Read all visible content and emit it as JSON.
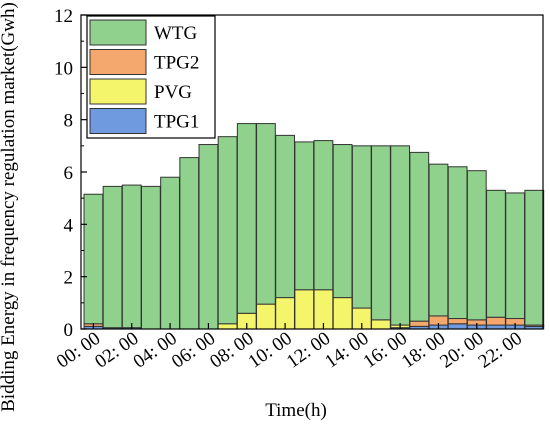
{
  "chart_data": {
    "type": "bar",
    "stacked": true,
    "xlabel": "Time(h)",
    "ylabel": "Bidding Energy in frequency regulation market(Gwh)",
    "ylim": [
      0,
      12
    ],
    "yticks": [
      0,
      2,
      4,
      6,
      8,
      10,
      12
    ],
    "xtick_labels": [
      "00: 00",
      "02: 00",
      "04: 00",
      "06: 00",
      "08: 00",
      "10: 00",
      "12: 00",
      "14: 00",
      "16: 00",
      "18: 00",
      "20: 00",
      "22: 00"
    ],
    "categories": [
      0,
      1,
      2,
      3,
      4,
      5,
      6,
      7,
      8,
      9,
      10,
      11,
      12,
      13,
      14,
      15,
      16,
      17,
      18,
      19,
      20,
      21,
      22,
      23
    ],
    "legend_position": "top-left",
    "grid": false,
    "series": [
      {
        "name": "TPG1",
        "color": "#6f9ae0",
        "values": [
          0.1,
          0.05,
          0.05,
          0,
          0,
          0,
          0,
          0,
          0,
          0,
          0,
          0,
          0,
          0,
          0,
          0,
          0.05,
          0.1,
          0.15,
          0.2,
          0.15,
          0.15,
          0.15,
          0.1
        ]
      },
      {
        "name": "PVG",
        "color": "#f5f56c",
        "values": [
          0,
          0,
          0,
          0,
          0,
          0,
          0,
          0.2,
          0.6,
          0.95,
          1.2,
          1.5,
          1.5,
          1.2,
          0.8,
          0.35,
          0.1,
          0,
          0,
          0,
          0,
          0,
          0,
          0
        ]
      },
      {
        "name": "TPG2",
        "color": "#f5a86e",
        "values": [
          0.1,
          0,
          0,
          0,
          0,
          0,
          0,
          0,
          0,
          0,
          0,
          0,
          0,
          0,
          0,
          0,
          0,
          0.2,
          0.35,
          0.2,
          0.2,
          0.3,
          0.25,
          0.05
        ]
      },
      {
        "name": "WTG",
        "color": "#8fd18d",
        "values": [
          4.95,
          5.4,
          5.45,
          5.45,
          5.8,
          6.55,
          7.05,
          7.15,
          7.25,
          6.9,
          6.2,
          5.65,
          5.7,
          5.85,
          6.2,
          6.65,
          6.85,
          6.45,
          5.8,
          5.8,
          5.7,
          4.85,
          4.8,
          5.15
        ]
      }
    ],
    "legend_order": [
      "WTG",
      "TPG2",
      "PVG",
      "TPG1"
    ]
  }
}
